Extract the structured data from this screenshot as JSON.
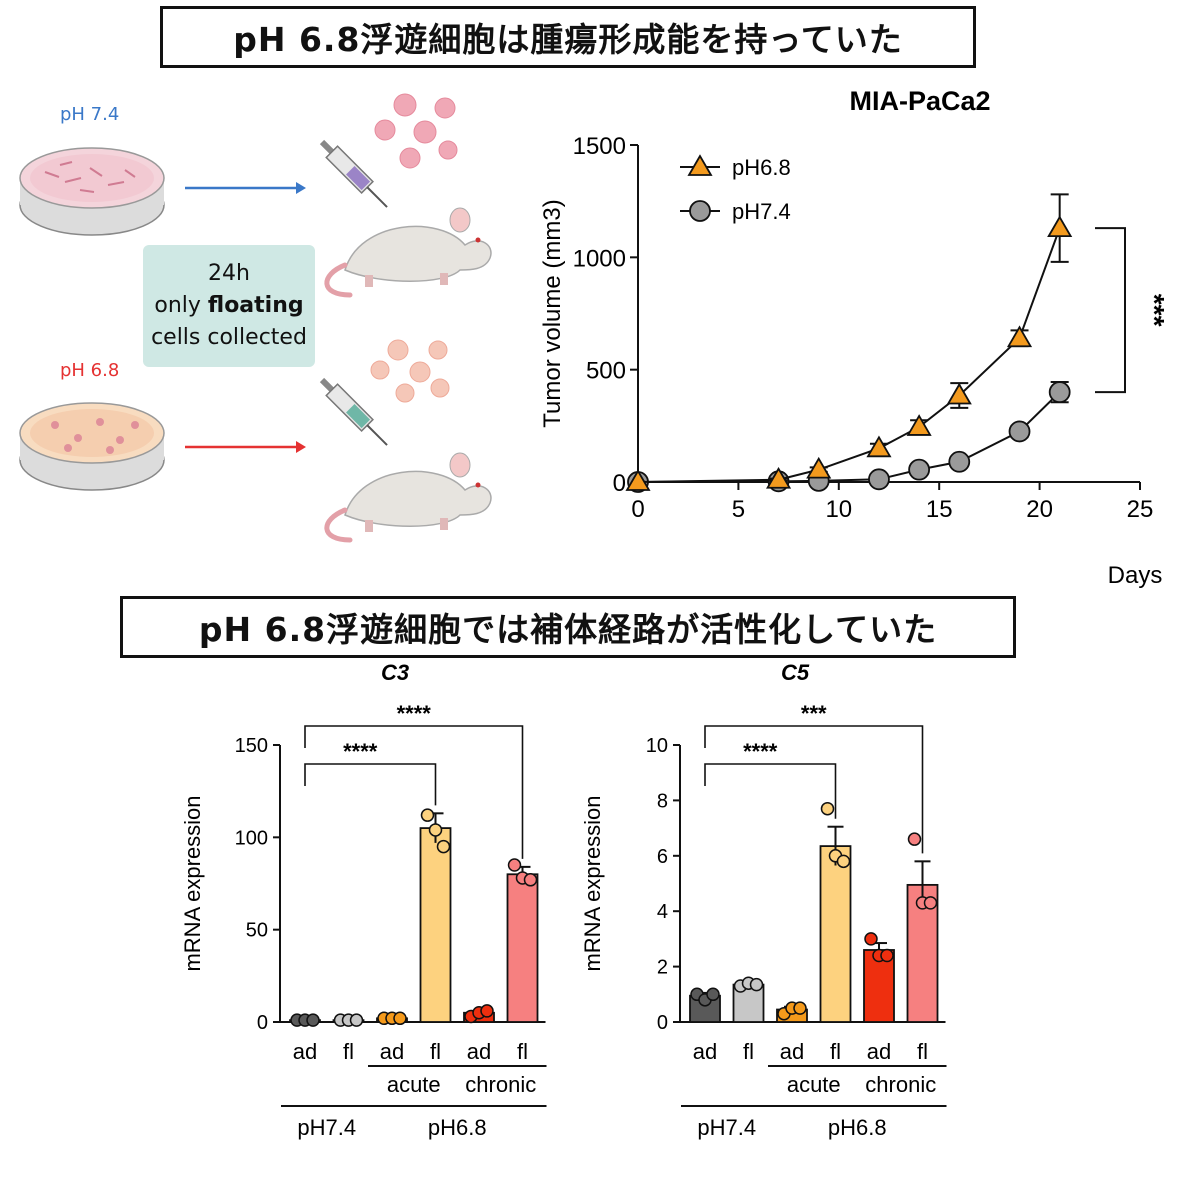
{
  "titles": {
    "top": "pH 6.8浮遊細胞は腫瘍形成能を持っていた",
    "bottom": "pH 6.8浮遊細胞では補体経路が活性化していた"
  },
  "schematic": {
    "dish_top_label": "pH 7.4",
    "dish_bottom_label": "pH 6.8",
    "info_line1": "24h",
    "info_line2_pre": "only ",
    "info_line2_bold": "floating",
    "info_line3": "cells collected",
    "colors": {
      "ph74": "#3a78c8",
      "ph68": "#e53232"
    }
  },
  "chart_data": [
    {
      "type": "line",
      "title": "MIA-PaCa2",
      "xlabel": "Days",
      "ylabel": "Tumor volume (mm3)",
      "xlim": [
        0,
        25
      ],
      "ylim": [
        0,
        1500
      ],
      "xticks": [
        "0",
        "5",
        "10",
        "15",
        "20",
        "25"
      ],
      "yticks": [
        "0",
        "500",
        "1000",
        "1500"
      ],
      "legend_position": "top-left",
      "series": [
        {
          "name": "pH6.8",
          "marker": "triangle",
          "color": "#f39a1e",
          "x": [
            0,
            7,
            9,
            12,
            14,
            16,
            19,
            21
          ],
          "y": [
            0,
            10,
            55,
            150,
            245,
            385,
            640,
            1130
          ],
          "err": [
            0,
            5,
            10,
            20,
            30,
            55,
            35,
            150
          ]
        },
        {
          "name": "pH7.4",
          "marker": "circle",
          "color": "#9a9a9a",
          "x": [
            0,
            7,
            9,
            12,
            14,
            16,
            19,
            21
          ],
          "y": [
            0,
            3,
            5,
            12,
            55,
            90,
            225,
            400
          ],
          "err": [
            0,
            2,
            2,
            4,
            10,
            15,
            25,
            45
          ]
        }
      ],
      "significance": "***"
    },
    {
      "type": "bar",
      "title": "C3",
      "ylabel": "mRNA expression",
      "ylim": [
        0,
        150
      ],
      "yticks": [
        "0",
        "50",
        "100",
        "150"
      ],
      "categories": [
        "ad",
        "fl",
        "ad",
        "fl",
        "ad",
        "fl"
      ],
      "subgroups": [
        "acute",
        "chronic"
      ],
      "groups": [
        "pH7.4",
        "pH6.8"
      ],
      "values": [
        1,
        1,
        2,
        105,
        5,
        80
      ],
      "errors": [
        0.3,
        0.3,
        0.5,
        8,
        1,
        4
      ],
      "points": [
        [
          1,
          1,
          1
        ],
        [
          1,
          1,
          1
        ],
        [
          2,
          2,
          2
        ],
        [
          112,
          104,
          95
        ],
        [
          3,
          5,
          6
        ],
        [
          85,
          78,
          77
        ]
      ],
      "colors": [
        "#595959",
        "#c7c7c7",
        "#f59a1b",
        "#fdd27f",
        "#ee2f0f",
        "#f68080"
      ],
      "significance": [
        {
          "label": "****",
          "from": 0,
          "to": 3
        },
        {
          "label": "****",
          "from": 0,
          "to": 5
        }
      ]
    },
    {
      "type": "bar",
      "title": "C5",
      "ylabel": "mRNA expression",
      "ylim": [
        0,
        10
      ],
      "yticks": [
        "0",
        "2",
        "4",
        "6",
        "8",
        "10"
      ],
      "categories": [
        "ad",
        "fl",
        "ad",
        "fl",
        "ad",
        "fl"
      ],
      "subgroups": [
        "acute",
        "chronic"
      ],
      "groups": [
        "pH7.4",
        "pH6.8"
      ],
      "values": [
        0.95,
        1.35,
        0.45,
        6.35,
        2.6,
        4.95
      ],
      "errors": [
        0.1,
        0.1,
        0.1,
        0.7,
        0.25,
        0.85
      ],
      "points": [
        [
          1.0,
          0.8,
          1.0
        ],
        [
          1.3,
          1.4,
          1.35
        ],
        [
          0.3,
          0.5,
          0.5
        ],
        [
          7.7,
          6.0,
          5.8
        ],
        [
          3.0,
          2.4,
          2.4
        ],
        [
          6.6,
          4.3,
          4.3
        ]
      ],
      "colors": [
        "#595959",
        "#c7c7c7",
        "#f59a1b",
        "#fdd27f",
        "#ee2f0f",
        "#f68080"
      ],
      "significance": [
        {
          "label": "****",
          "from": 0,
          "to": 3
        },
        {
          "label": "***",
          "from": 0,
          "to": 5
        }
      ]
    }
  ]
}
